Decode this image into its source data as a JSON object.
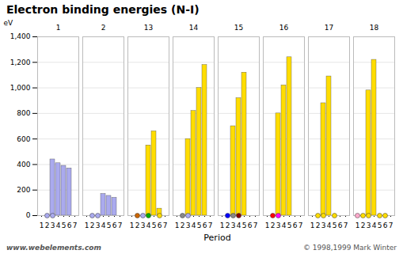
{
  "chart_data": {
    "type": "bar3d",
    "title": "Electron binding energies (N-I)",
    "groups": [
      1,
      2,
      13,
      14,
      15,
      16,
      17,
      18
    ],
    "periods": [
      1,
      2,
      3,
      4,
      5,
      6,
      7
    ],
    "ylabel": "Period",
    "zlabel": "eV",
    "zlim": [
      0,
      1400
    ],
    "zticks": [
      0,
      200,
      400,
      600,
      800,
      {
        "value": 1000,
        "label": "1,000"
      },
      {
        "value": 1200,
        "label": "1,200"
      },
      {
        "value": 1400,
        "label": "1,400"
      }
    ],
    "grid": true,
    "bars": [
      {
        "group": 1,
        "period": 3,
        "value": 440,
        "color": "#aaaaee"
      },
      {
        "group": 1,
        "period": 4,
        "value": 410,
        "color": "#aaaaee"
      },
      {
        "group": 1,
        "period": 5,
        "value": 390,
        "color": "#aaaaee"
      },
      {
        "group": 1,
        "period": 6,
        "value": 370,
        "color": "#aaaaee"
      },
      {
        "group": 2,
        "period": 4,
        "value": 170,
        "color": "#aaaaee"
      },
      {
        "group": 2,
        "period": 5,
        "value": 155,
        "color": "#aaaaee"
      },
      {
        "group": 2,
        "period": 6,
        "value": 140,
        "color": "#aaaaee"
      },
      {
        "group": 13,
        "period": 4,
        "value": 550,
        "color": "#ffdd00"
      },
      {
        "group": 13,
        "period": 5,
        "value": 660,
        "color": "#ffdd00"
      },
      {
        "group": 13,
        "period": 6,
        "value": 55,
        "color": "#ffdd00"
      },
      {
        "group": 14,
        "period": 3,
        "value": 600,
        "color": "#ffdd00"
      },
      {
        "group": 14,
        "period": 4,
        "value": 820,
        "color": "#ffdd00"
      },
      {
        "group": 14,
        "period": 5,
        "value": 1000,
        "color": "#ffdd00"
      },
      {
        "group": 14,
        "period": 6,
        "value": 1180,
        "color": "#ffdd00"
      },
      {
        "group": 15,
        "period": 3,
        "value": 700,
        "color": "#ffdd00"
      },
      {
        "group": 15,
        "period": 4,
        "value": 920,
        "color": "#ffdd00"
      },
      {
        "group": 15,
        "period": 5,
        "value": 1120,
        "color": "#ffdd00"
      },
      {
        "group": 16,
        "period": 3,
        "value": 800,
        "color": "#ffdd00"
      },
      {
        "group": 16,
        "period": 4,
        "value": 1020,
        "color": "#ffdd00"
      },
      {
        "group": 16,
        "period": 5,
        "value": 1240,
        "color": "#ffdd00"
      },
      {
        "group": 17,
        "period": 3,
        "value": 880,
        "color": "#ffdd00"
      },
      {
        "group": 17,
        "period": 4,
        "value": 1090,
        "color": "#ffdd00"
      },
      {
        "group": 18,
        "period": 3,
        "value": 980,
        "color": "#ffdd00"
      },
      {
        "group": 18,
        "period": 4,
        "value": 1220,
        "color": "#ffdd00"
      }
    ],
    "dots": [
      {
        "group": 18,
        "period": 1,
        "color": "#ffaacc"
      },
      {
        "group": 1,
        "period": 2,
        "color": "#aaaaee"
      },
      {
        "group": 2,
        "period": 2,
        "color": "#aaaaee"
      },
      {
        "group": 13,
        "period": 2,
        "color": "#cc6600"
      },
      {
        "group": 14,
        "period": 2,
        "color": "#888888"
      },
      {
        "group": 15,
        "period": 2,
        "color": "#0000ff"
      },
      {
        "group": 16,
        "period": 2,
        "color": "#ff0000"
      },
      {
        "group": 17,
        "period": 2,
        "color": "#ffdd00"
      },
      {
        "group": 18,
        "period": 2,
        "color": "#ffdd00"
      },
      {
        "group": 1,
        "period": 3,
        "color": "#aaaaee"
      },
      {
        "group": 2,
        "period": 3,
        "color": "#aaaaee"
      },
      {
        "group": 13,
        "period": 3,
        "color": "#aaaaee"
      },
      {
        "group": 14,
        "period": 3,
        "color": "#aaaaee"
      },
      {
        "group": 15,
        "period": 3,
        "color": "#888888"
      },
      {
        "group": 16,
        "period": 3,
        "color": "#ff00ff"
      },
      {
        "group": 17,
        "period": 3,
        "color": "#ffdd00"
      },
      {
        "group": 18,
        "period": 3,
        "color": "#ffdd00"
      },
      {
        "group": 13,
        "period": 4,
        "color": "#00aa00"
      },
      {
        "group": 15,
        "period": 4,
        "color": "#880000"
      },
      {
        "group": 17,
        "period": 5,
        "color": "#ffdd00"
      },
      {
        "group": 18,
        "period": 5,
        "color": "#ffdd00"
      },
      {
        "group": 13,
        "period": 6,
        "color": "#ffdd00"
      },
      {
        "group": 18,
        "period": 6,
        "color": "#ffdd00"
      }
    ],
    "annotations": [
      "www.webelements.com",
      "© 1998,1999 Mark Winter"
    ]
  }
}
